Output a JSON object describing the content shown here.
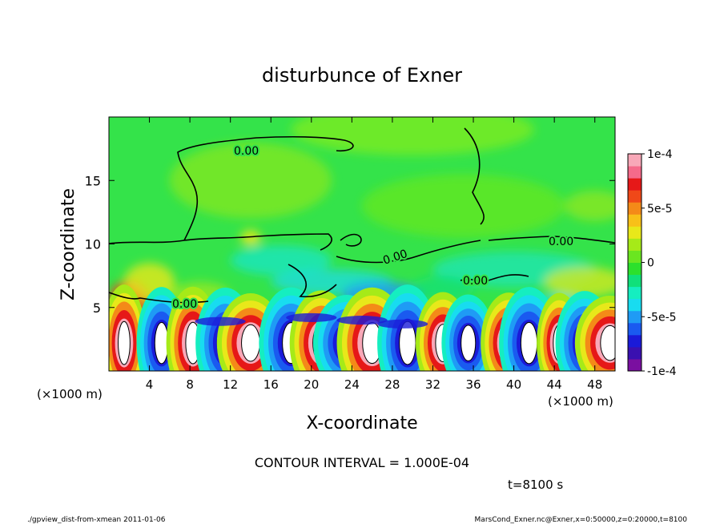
{
  "chart_data": {
    "type": "heatmap",
    "title": "disturbunce of Exner",
    "xlabel": "X-coordinate",
    "ylabel": "Z-coordinate",
    "x_unit": "(×1000 m)",
    "y_unit": "(×1000 m)",
    "xlim": [
      0,
      50
    ],
    "ylim": [
      0,
      20
    ],
    "x_ticks": [
      4,
      8,
      12,
      16,
      20,
      24,
      28,
      32,
      36,
      40,
      44,
      48
    ],
    "y_ticks": [
      5,
      10,
      15
    ],
    "contour_label": "0.00",
    "contour_interval_text": "CONTOUR INTERVAL = 1.000E-04",
    "time_text": "t=8100 s",
    "colorbar": {
      "min": -0.0001,
      "max": 0.0001,
      "tick_labels": [
        "1e-4",
        "5e-5",
        "0",
        "-5e-5",
        "-1e-4"
      ],
      "tick_values": [
        0.0001,
        5e-05,
        0,
        -5e-05,
        -0.0001
      ],
      "colors": [
        "#7a0fa0",
        "#3a10b0",
        "#1a1ad8",
        "#1a5af0",
        "#1f9bf5",
        "#18dcf0",
        "#15eec0",
        "#10e07a",
        "#2ce02c",
        "#6ae620",
        "#a6ea18",
        "#e8e81a",
        "#f8c018",
        "#f48a18",
        "#f04818",
        "#e61818",
        "#f56a8a",
        "#f8a8b8"
      ]
    }
  },
  "footer": {
    "left": "./gpview_dist-from-xmean  2011-01-06",
    "right": "MarsCond_Exner.nc@Exner,x=0:50000,z=0:20000,t=8100"
  }
}
